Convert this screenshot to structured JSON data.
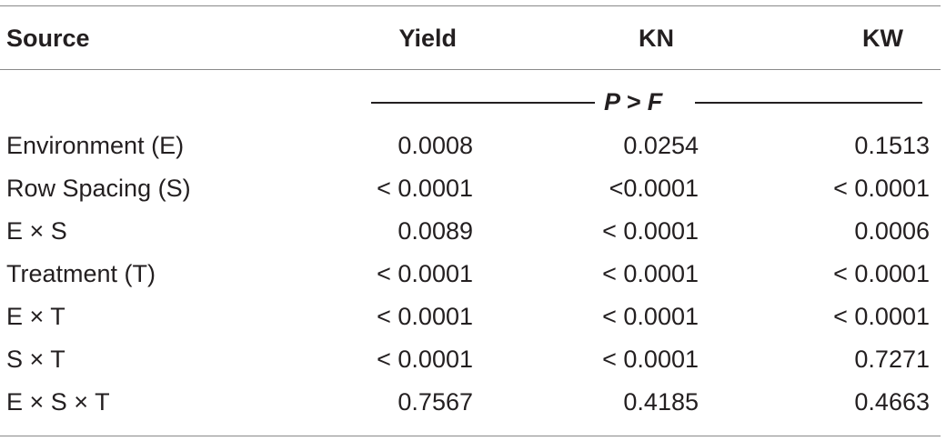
{
  "table": {
    "headers": {
      "source": "Source",
      "yield": "Yield",
      "kn": "KN",
      "kw": "KW"
    },
    "subheader": "P  > F",
    "rows": [
      {
        "source": "Environment (E)",
        "yield": "0.0008",
        "kn": "0.0254",
        "kw": "0.1513"
      },
      {
        "source": "Row Spacing (S)",
        "yield": "< 0.0001",
        "kn": "<0.0001",
        "kw": "< 0.0001"
      },
      {
        "source": "E × S",
        "yield": "0.0089",
        "kn": "< 0.0001",
        "kw": "0.0006"
      },
      {
        "source": "Treatment (T)",
        "yield": "< 0.0001",
        "kn": "< 0.0001",
        "kw": "< 0.0001"
      },
      {
        "source": "E × T",
        "yield": "< 0.0001",
        "kn": "< 0.0001",
        "kw": "< 0.0001"
      },
      {
        "source": "S × T",
        "yield": "< 0.0001",
        "kn": "< 0.0001",
        "kw": "0.7271"
      },
      {
        "source": "E × S × T",
        "yield": "0.7567",
        "kn": "0.4185",
        "kw": "0.4663"
      }
    ]
  }
}
